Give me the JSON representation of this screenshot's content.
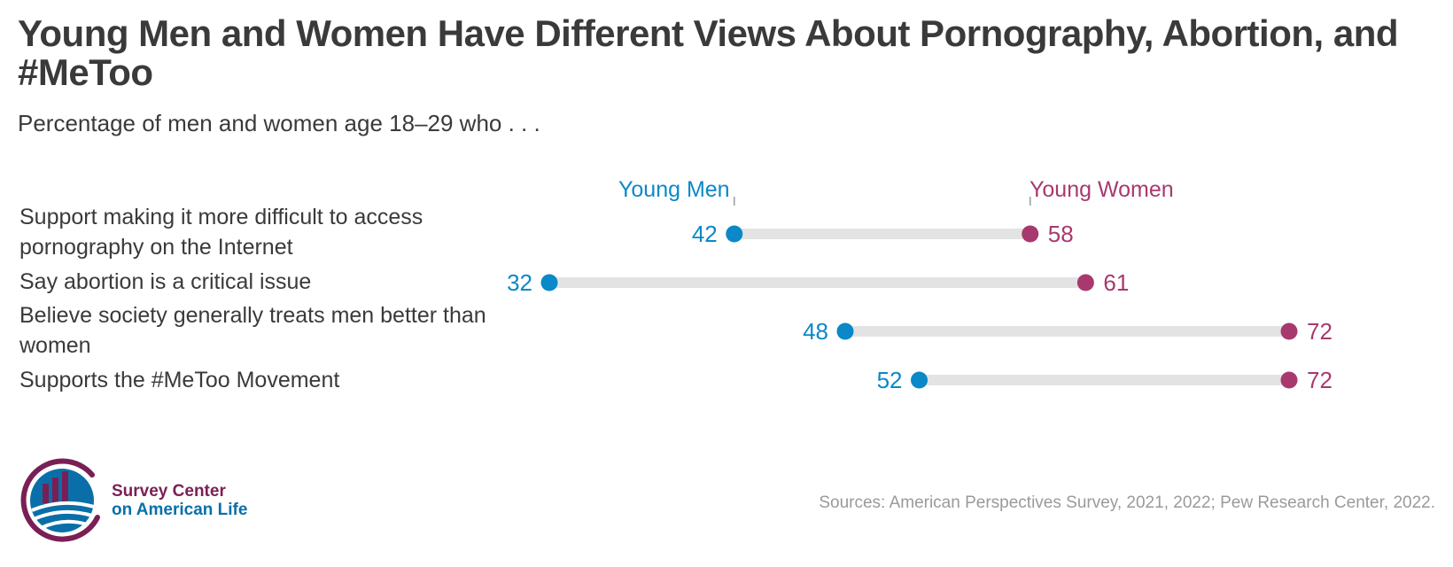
{
  "title": "Young Men and Women Have Different Views About Pornography, Abortion, and #MeToo",
  "subtitle": "Percentage of men and women age 18–29 who . . .",
  "colors": {
    "men": "#0a88c8",
    "women": "#a8396e",
    "track": "#e3e3e3",
    "text": "#3a3a3a",
    "source": "#9a9a9a"
  },
  "chart_data": {
    "type": "dumbbell",
    "series": [
      {
        "name": "Young Men",
        "values": [
          42,
          32,
          48,
          52
        ]
      },
      {
        "name": "Young Women",
        "values": [
          58,
          61,
          72,
          72
        ]
      }
    ],
    "categories": [
      "Support making it more difficult to access pornography on the Internet",
      "Say abortion is a critical issue",
      "Believe society generally treats men better than women",
      "Supports the #MeToo Movement"
    ],
    "title": "Young Men and Women Have Different Views About Pornography, Abortion, and #MeToo",
    "legend": [
      "Young Men",
      "Young Women"
    ],
    "legend_placement": "top, above first row",
    "xlim": [
      32,
      72
    ]
  },
  "logo": {
    "line1": "Survey Center",
    "line2": "on American Life"
  },
  "source": "Sources: American Perspectives Survey, 2021, 2022; Pew Research Center, 2022."
}
